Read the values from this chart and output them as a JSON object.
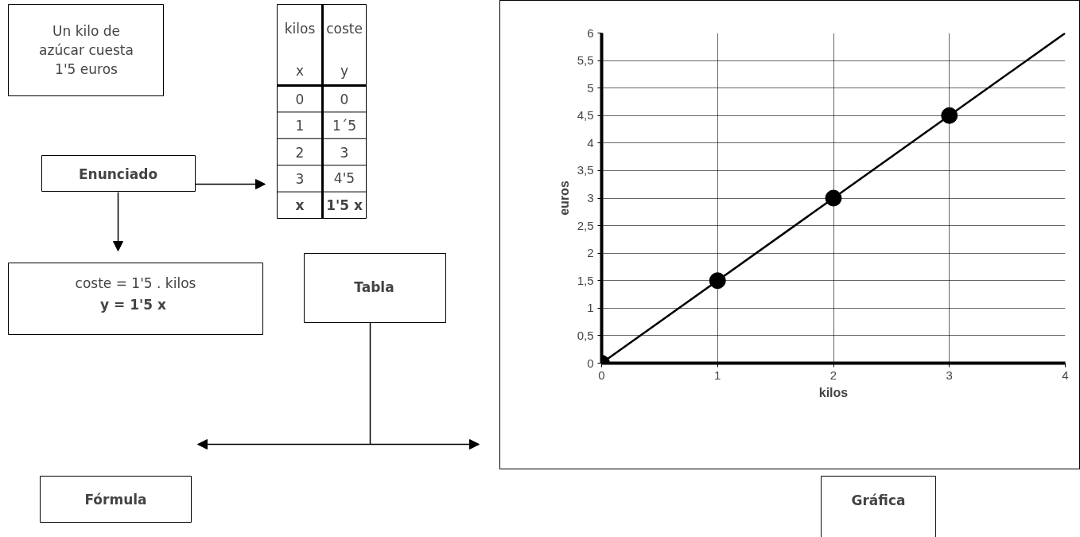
{
  "chart_data": {
    "type": "line",
    "xlabel": "kilos",
    "ylabel": "euros",
    "xlim": [
      0,
      4
    ],
    "xticks": [
      0,
      1,
      2,
      3,
      4
    ],
    "ylim": [
      0,
      6
    ],
    "yticks": [
      0,
      {
        "value": 0.5,
        "label": "0,5"
      },
      1,
      {
        "value": 1.5,
        "label": "1,5"
      },
      2,
      {
        "value": 2.5,
        "label": "2,5"
      },
      3,
      {
        "value": 3.5,
        "label": "3,5"
      },
      4,
      {
        "value": 4.5,
        "label": "4,5"
      },
      5,
      {
        "value": 5.5,
        "label": "5,5"
      },
      6
    ],
    "grid": true,
    "marker": "circle",
    "line_style": "solid",
    "series": [
      {
        "x": [
          0,
          4
        ],
        "values": [
          0,
          6
        ],
        "color": "#000000",
        "marker": "none"
      },
      {
        "type": "scatter",
        "x": [
          0,
          1,
          2,
          3
        ],
        "values": [
          0,
          1.5,
          3,
          4.5
        ],
        "color": "#000000"
      }
    ],
    "annotations": [
      "Un kilo de\nazúcar cuesta\n1'5 euros",
      "Enunciado",
      "coste = 1'5 . kilos",
      "y = 1'5  x",
      "Tabla",
      "Fórmula",
      "Gráfica",
      "kilos",
      "x",
      "coste",
      "y",
      "x",
      "1'5 x",
      "0",
      "1",
      "2",
      "3",
      "0",
      "1´5",
      "3",
      "4'5"
    ]
  }
}
